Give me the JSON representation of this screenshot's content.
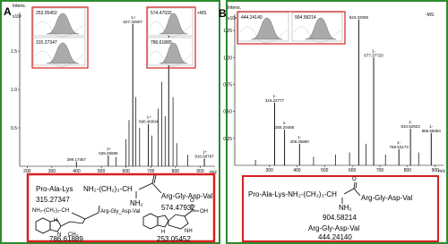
{
  "panels": [
    {
      "label": "A",
      "y_title": "Intens.",
      "y_scale": "x10⁸",
      "mode": "+MS",
      "x_title": "m/z",
      "spectrum": {
        "xlim": [
          170,
          960
        ],
        "ylim": [
          0,
          2
        ],
        "xticks": [
          200,
          300,
          400,
          500,
          600,
          700,
          800,
          900
        ],
        "yticks": [
          0.5,
          {
            "value": 1,
            "label": "1.0"
          },
          1.5
        ],
        "peaks": [
          {
            "mz": 399.17457,
            "intensity": 0.06
          },
          {
            "mz": 528.25686,
            "intensity": 0.14,
            "charge": "1+"
          },
          {
            "mz": 627.32907,
            "intensity": 1.85,
            "charge": "1+"
          },
          {
            "mz": 690.46004,
            "intensity": 0.55,
            "charge": "1+"
          },
          {
            "mz": 772.5428,
            "mz_label": "772.54280",
            "intensity": 1.8,
            "charge": "1+"
          },
          {
            "mz": 916.68787,
            "intensity": 0.1,
            "charge": "1+"
          }
        ],
        "other_peaks": [
          {
            "mz": 560,
            "intensity": 0.12
          },
          {
            "mz": 600,
            "intensity": 0.35
          },
          {
            "mz": 612,
            "intensity": 0.6
          },
          {
            "mz": 640,
            "intensity": 0.9
          },
          {
            "mz": 655,
            "intensity": 0.5
          },
          {
            "mz": 705,
            "intensity": 0.4
          },
          {
            "mz": 730,
            "intensity": 0.75
          },
          {
            "mz": 745,
            "intensity": 1.1
          },
          {
            "mz": 758,
            "intensity": 0.65
          },
          {
            "mz": 790,
            "intensity": 0.9
          },
          {
            "mz": 805,
            "intensity": 0.3
          },
          {
            "mz": 850,
            "intensity": 0.15
          }
        ]
      },
      "insets": [
        "253.05452",
        "315.27347",
        "574.47932",
        "786.61889"
      ],
      "structures": {
        "pal": "Pro-Ala-Lys",
        "pal_mass": "315.27347",
        "chain": "NH₂-(CH₂)₃-CH",
        "nh2": "NH₂",
        "rgdv": "Arg-Gly-Asp-Val",
        "mass1": "574.47932",
        "chain2": "NH₂-(CH₂)₃-CH",
        "rgdv2": "Arg-Gly_Asp-Val",
        "n": "N",
        "h": "H",
        "ch3": "CH₃",
        "mass2": "786.61889",
        "oh": "OH",
        "o": "O",
        "nh": "NH",
        "h2": "H",
        "mass3": "253.05452"
      }
    },
    {
      "label": "B",
      "y_title": "Intens.",
      "y_scale": "x10⁸",
      "mode": "-MS",
      "x_title": "m/z",
      "spectrum": {
        "xlim": [
          175,
          930
        ],
        "ylim": [
          0,
          1.4
        ],
        "xticks": [
          300,
          400,
          500,
          600,
          700,
          800,
          900
        ],
        "yticks": [
          {
            "value": 0.25,
            "label": "0.25"
          },
          {
            "value": 0.5,
            "label": "0.50"
          },
          {
            "value": 0.75,
            "label": "0.75"
          },
          {
            "value": 1,
            "label": "1.00"
          },
          {
            "value": 1.25,
            "label": "1.25"
          }
        ],
        "peaks": [
          {
            "mz": 319.22777,
            "intensity": 0.58,
            "charge": "1-"
          },
          {
            "mz": 355.20485,
            "intensity": 0.33,
            "charge": "1-"
          },
          {
            "mz": 409.2589,
            "mz_label": "409.25890",
            "intensity": 0.2,
            "charge": "1-"
          },
          {
            "mz": 623.32095,
            "intensity": 1.35
          },
          {
            "mz": 677.3772,
            "mz_label": "677.37720",
            "intensity": 1.0,
            "charge": "1-"
          },
          {
            "mz": 768.53173,
            "intensity": 0.15,
            "charge": "1-"
          },
          {
            "mz": 810.52923,
            "intensity": 0.34,
            "charge": "1-"
          },
          {
            "mz": 885.55084,
            "intensity": 0.3,
            "charge": "1-"
          }
        ],
        "other_peaks": [
          {
            "mz": 250,
            "intensity": 0.05
          },
          {
            "mz": 460,
            "intensity": 0.08
          },
          {
            "mz": 540,
            "intensity": 0.1
          },
          {
            "mz": 590,
            "intensity": 0.12
          },
          {
            "mz": 650,
            "intensity": 0.2
          },
          {
            "mz": 720,
            "intensity": 0.1
          },
          {
            "mz": 840,
            "intensity": 0.12
          }
        ]
      },
      "insets": [
        "444.24140",
        "904.58214"
      ],
      "structures": {
        "chain": "Pro-Ala-Lys-NH₂-(CH₂)₃-CH",
        "o": "O",
        "rgdv": "Arg-Gly-Asp-Val",
        "nh2": "NH₂",
        "mass1": "904.58214",
        "rgdv2": "Arg-Gly-Asp-Val",
        "mass2": "444.24140"
      }
    }
  ]
}
